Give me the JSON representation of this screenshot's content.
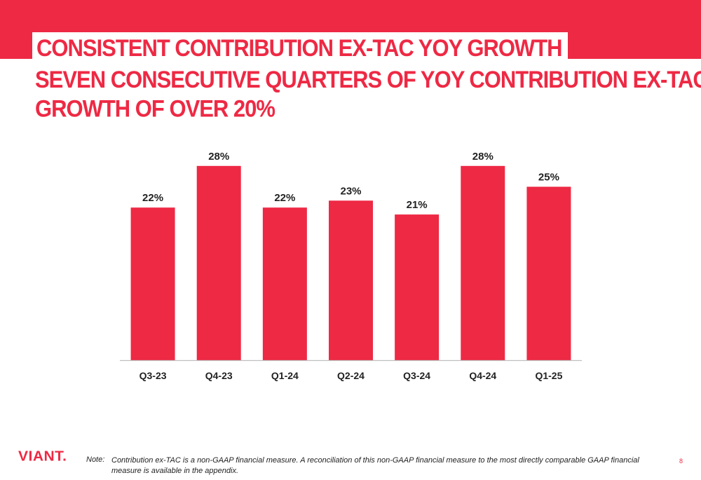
{
  "header": {
    "title": "CONSISTENT CONTRIBUTION EX-TAC YOY GROWTH",
    "subtitle_line1": "SEVEN CONSECUTIVE QUARTERS OF YOY CONTRIBUTION EX-TAC",
    "subtitle_line2": "GROWTH OF OVER 20%"
  },
  "colors": {
    "accent": "#ee2944",
    "bar": "#ee2944",
    "text": "#222222",
    "axis": "#bfbfbf"
  },
  "chart_data": {
    "type": "bar",
    "categories": [
      "Q3-23",
      "Q4-23",
      "Q1-24",
      "Q2-24",
      "Q3-24",
      "Q4-24",
      "Q1-25"
    ],
    "values": [
      22,
      28,
      22,
      23,
      21,
      28,
      25
    ],
    "data_labels": [
      "22%",
      "28%",
      "22%",
      "23%",
      "21%",
      "28%",
      "25%"
    ],
    "value_unit": "%",
    "ylim": [
      0,
      30
    ],
    "grid": false,
    "legend": "none",
    "y_axis_shown": false
  },
  "footer": {
    "logo_text": "VIANT.",
    "note_label": "Note:",
    "note_text": "Contribution ex-TAC is a non-GAAP financial measure. A reconciliation of this non-GAAP financial measure to the most directly comparable GAAP financial measure is available in the appendix.",
    "page_number": "8"
  }
}
